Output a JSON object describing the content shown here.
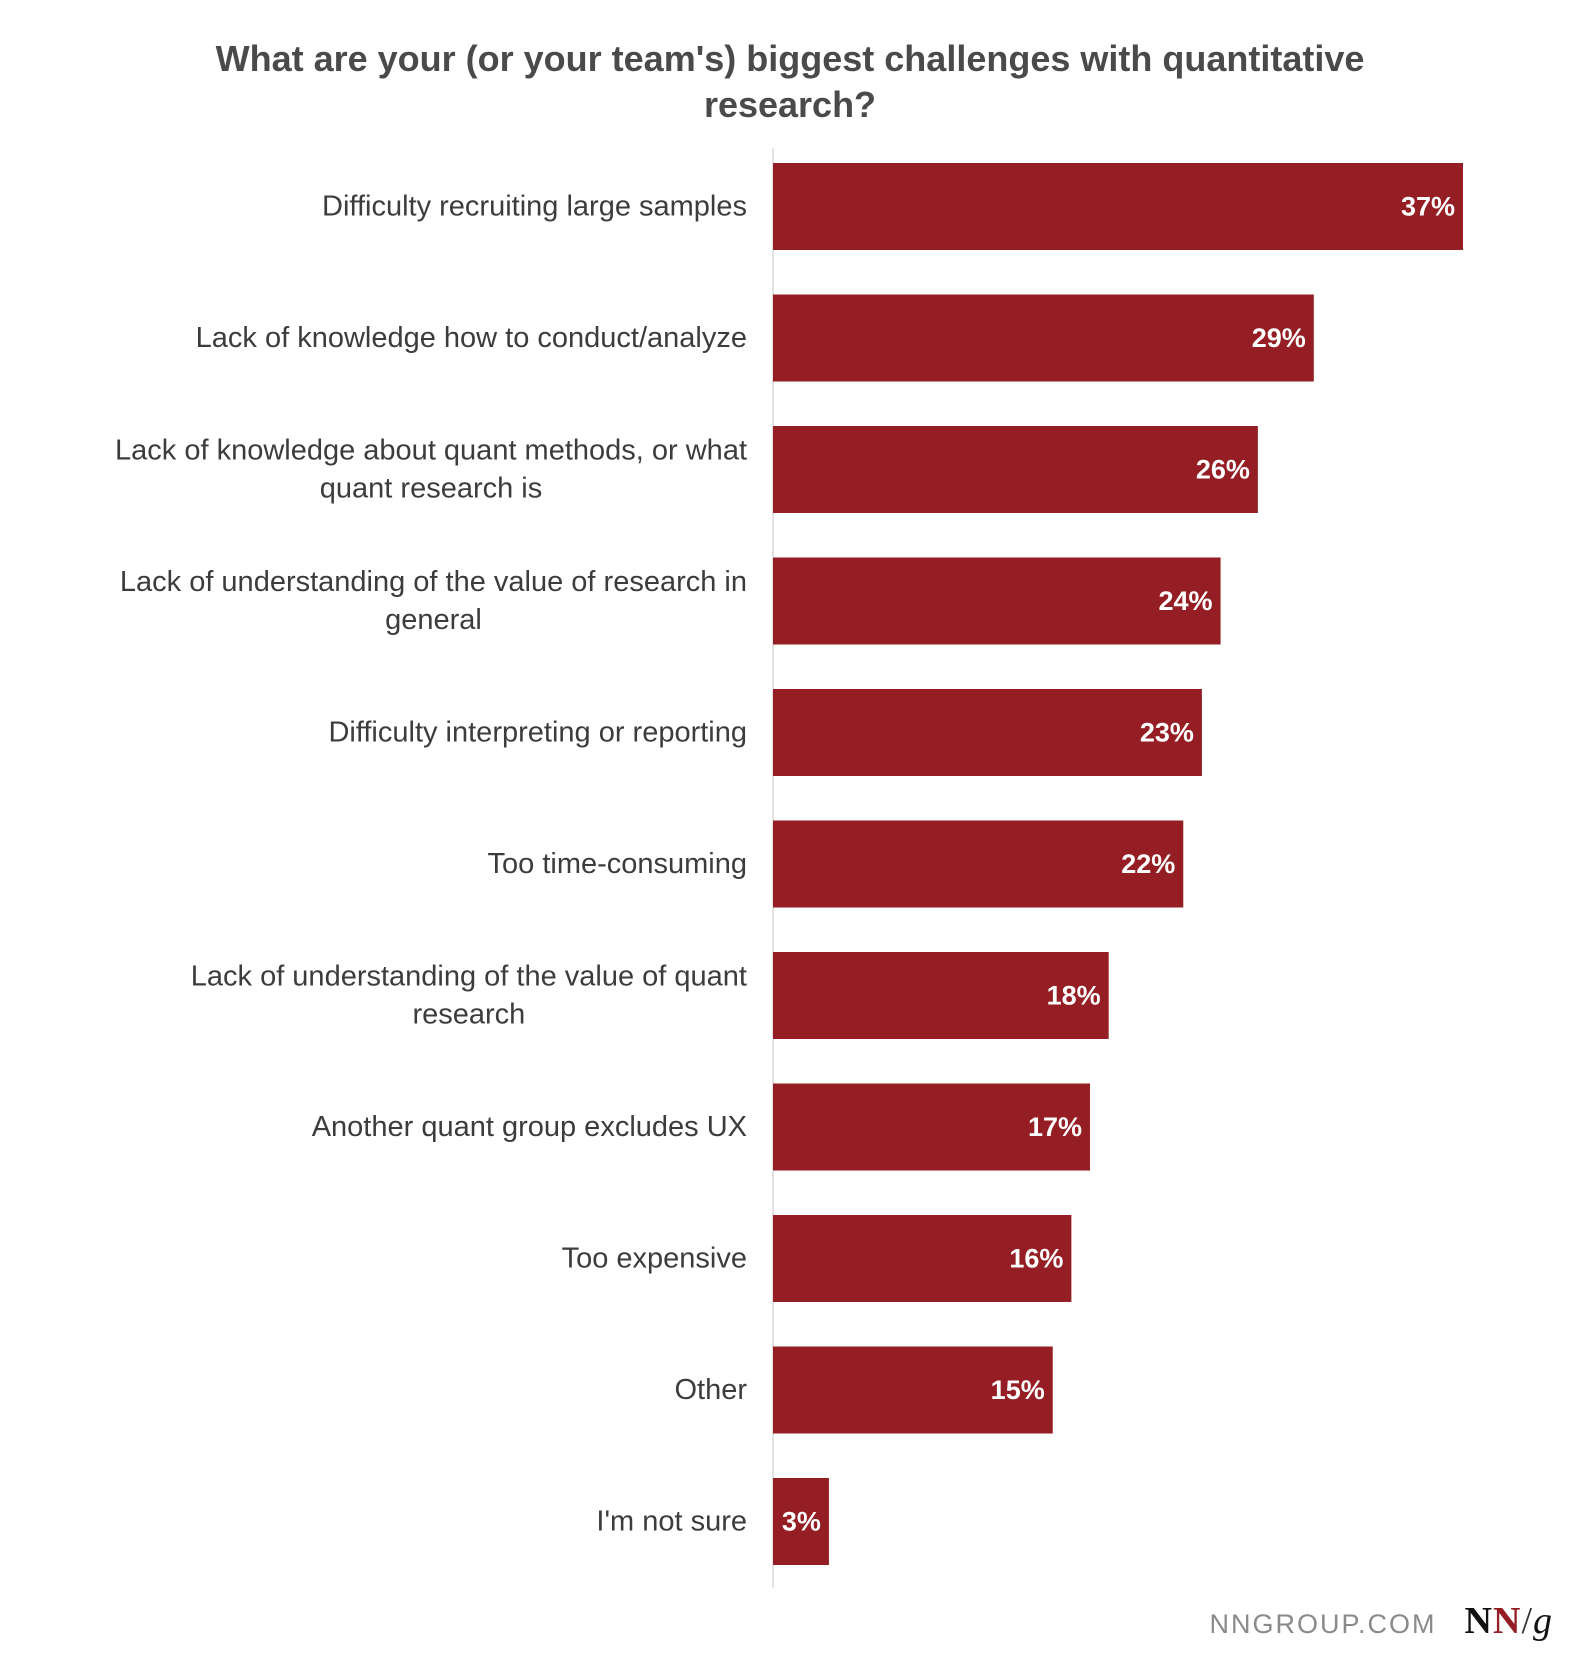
{
  "chart_data": {
    "type": "bar",
    "orientation": "horizontal",
    "title": "What are your (or your team's) biggest challenges with quantitative research?",
    "categories": [
      "Difficulty recruiting large samples",
      "Lack of knowledge how to conduct/analyze",
      "Lack of knowledge about quant methods, or what quant research is",
      "Lack of understanding of the value of research in general",
      "Difficulty interpreting or reporting",
      "Too time-consuming",
      "Lack of understanding of the value of quant research",
      "Another quant group excludes UX",
      "Too expensive",
      "Other",
      "I'm not sure"
    ],
    "category_lines": [
      [
        "Difficulty recruiting large samples"
      ],
      [
        "Lack of knowledge how to conduct/analyze"
      ],
      [
        "Lack of knowledge about quant methods, or what",
        "quant research is"
      ],
      [
        "Lack of understanding of the value of research in",
        "general"
      ],
      [
        "Difficulty interpreting or reporting"
      ],
      [
        "Too time-consuming"
      ],
      [
        "Lack of understanding of the value of quant",
        "research"
      ],
      [
        "Another quant group excludes UX"
      ],
      [
        "Too expensive"
      ],
      [
        "Other"
      ],
      [
        "I'm not sure"
      ]
    ],
    "values": [
      37,
      29,
      26,
      24,
      23,
      22,
      18,
      17,
      16,
      15,
      3
    ],
    "value_labels": [
      "37%",
      "29%",
      "26%",
      "24%",
      "23%",
      "22%",
      "18%",
      "17%",
      "16%",
      "15%",
      "3%"
    ],
    "xlim": [
      0,
      37
    ],
    "grid": false,
    "bar_color": "#941e23",
    "axis_line_color": "#d9d9d9"
  },
  "footer": {
    "url": "NNGROUP.COM",
    "logo_text": "NN/g"
  }
}
